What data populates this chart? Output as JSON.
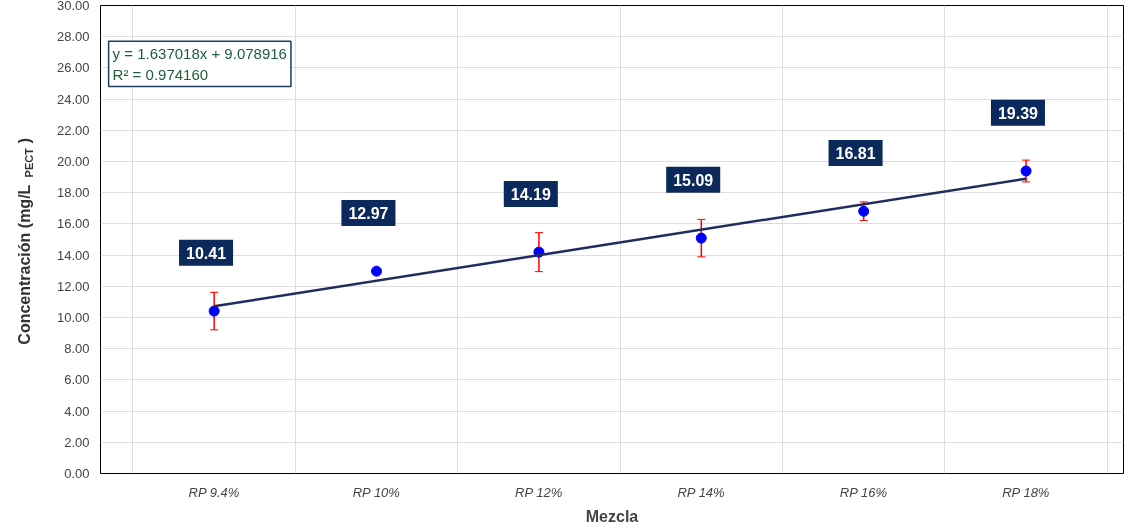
{
  "chart_data": {
    "type": "scatter",
    "xlabel": "Mezcla",
    "ylabel": "Concentración (mg/L$_{PECT}$)",
    "categories": [
      "RP 9.4%",
      "RP 10%",
      "RP 12%",
      "RP 14%",
      "RP 16%",
      "RP 18%"
    ],
    "series": [
      {
        "color": "#0000ff",
        "marker": "circle",
        "values": [
          10.41,
          12.97,
          14.19,
          15.09,
          16.81,
          19.39
        ],
        "errors": [
          1.2,
          null,
          1.25,
          1.2,
          0.6,
          0.7
        ],
        "value_labels": [
          "10.41",
          "12.97",
          "14.19",
          "15.09",
          "16.81",
          "19.39"
        ]
      },
      {
        "type": "line",
        "color": "#1f2d5c",
        "marker": "none",
        "x": [
          "RP 9.4%",
          "RP 18%"
        ],
        "values": [
          10.72,
          18.9
        ]
      }
    ],
    "annotations": [
      "y = 1.637018x + 9.078916\nR² = 0.974160"
    ],
    "ylim": [
      0,
      30
    ],
    "yticks": [
      {
        "value": 0,
        "label": "0.00"
      },
      {
        "value": 2,
        "label": "2.00"
      },
      {
        "value": 4,
        "label": "4.00"
      },
      {
        "value": 6,
        "label": "6.00"
      },
      {
        "value": 8,
        "label": "8.00"
      },
      {
        "value": 10,
        "label": "10.00"
      },
      {
        "value": 12,
        "label": "12.00"
      },
      {
        "value": 14,
        "label": "14.00"
      },
      {
        "value": 16,
        "label": "16.00"
      },
      {
        "value": 18,
        "label": "18.00"
      },
      {
        "value": 20,
        "label": "20.00"
      },
      {
        "value": 22,
        "label": "22.00"
      },
      {
        "value": 24,
        "label": "24.00"
      },
      {
        "value": 26,
        "label": "26.00"
      },
      {
        "value": 28,
        "label": "28.00"
      },
      {
        "value": 30,
        "label": "30.00"
      }
    ],
    "grid": true
  }
}
